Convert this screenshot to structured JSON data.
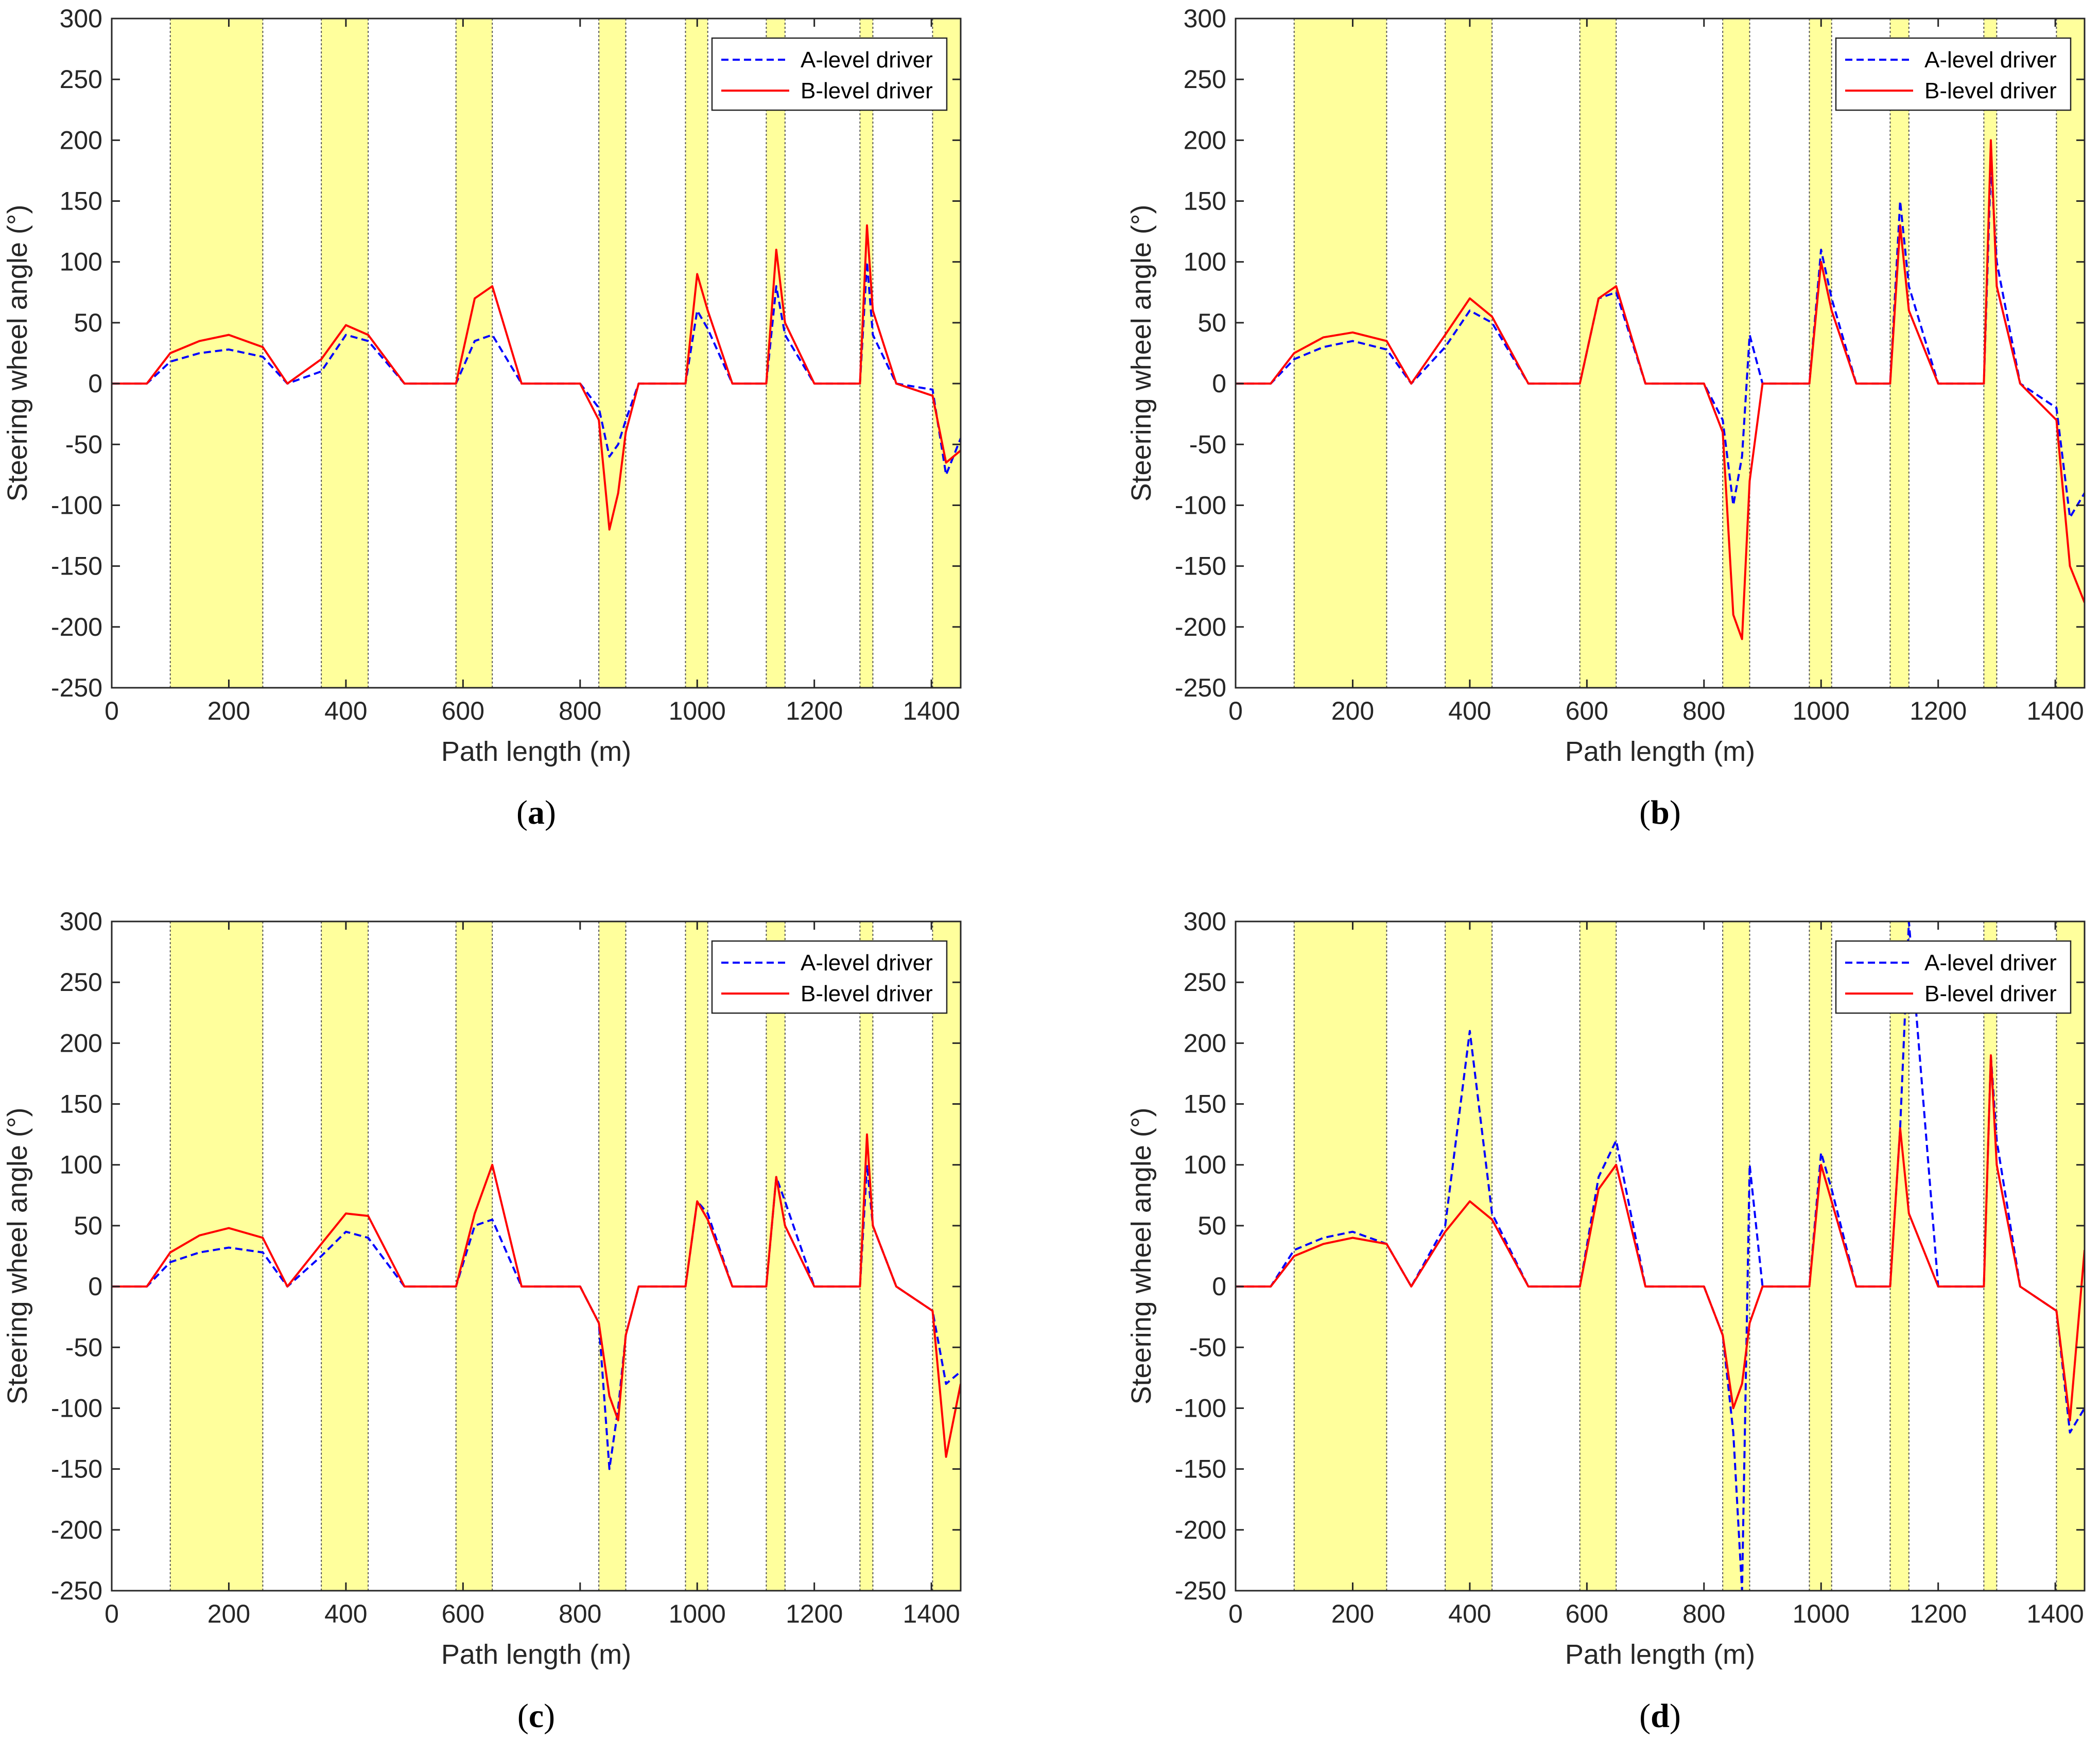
{
  "colors": {
    "band": "#ffff9c",
    "band_edge": "#555555",
    "a_level": "#0000ff",
    "b_level": "#ff0000",
    "axis": "#262626"
  },
  "chart_data": [
    {
      "type": "line",
      "caption_prefix": "(",
      "caption_letter": "a",
      "caption_suffix": ")",
      "xlabel": "Path length (m)",
      "ylabel": "Steering wheel angle (°)",
      "xlim": [
        0,
        1450
      ],
      "ylim": [
        -250,
        300
      ],
      "xticks": [
        0,
        200,
        400,
        600,
        800,
        1000,
        1200,
        1400
      ],
      "yticks": [
        -250,
        -200,
        -150,
        -100,
        -50,
        0,
        50,
        100,
        150,
        200,
        250,
        300
      ],
      "legend": {
        "position": "top-right",
        "entries": [
          "A-level driver",
          "B-level driver"
        ]
      },
      "shaded_intervals": [
        [
          100,
          258
        ],
        [
          358,
          438
        ],
        [
          588,
          650
        ],
        [
          832,
          878
        ],
        [
          980,
          1018
        ],
        [
          1118,
          1150
        ],
        [
          1278,
          1300
        ],
        [
          1402,
          1450
        ]
      ],
      "series": [
        {
          "name": "A-level driver",
          "style": "dashed",
          "color": "#0000ff",
          "x": [
            0,
            60,
            100,
            150,
            200,
            258,
            300,
            358,
            400,
            438,
            500,
            588,
            620,
            650,
            700,
            800,
            832,
            850,
            865,
            878,
            900,
            980,
            1000,
            1018,
            1060,
            1118,
            1135,
            1150,
            1200,
            1278,
            1290,
            1300,
            1340,
            1402,
            1425,
            1450
          ],
          "y": [
            0,
            0,
            18,
            25,
            28,
            22,
            0,
            10,
            40,
            35,
            0,
            0,
            35,
            40,
            0,
            0,
            -20,
            -60,
            -50,
            -30,
            0,
            0,
            60,
            45,
            0,
            0,
            80,
            40,
            0,
            0,
            100,
            40,
            0,
            -5,
            -75,
            -45
          ]
        },
        {
          "name": "B-level driver",
          "style": "solid",
          "color": "#ff0000",
          "x": [
            0,
            60,
            100,
            150,
            200,
            258,
            300,
            358,
            400,
            438,
            500,
            588,
            620,
            650,
            700,
            800,
            832,
            850,
            865,
            878,
            900,
            980,
            1000,
            1018,
            1060,
            1118,
            1135,
            1150,
            1200,
            1278,
            1290,
            1300,
            1340,
            1402,
            1425,
            1450
          ],
          "y": [
            0,
            0,
            25,
            35,
            40,
            30,
            0,
            20,
            48,
            40,
            0,
            0,
            70,
            80,
            0,
            0,
            -30,
            -120,
            -90,
            -40,
            0,
            0,
            90,
            60,
            0,
            0,
            110,
            50,
            0,
            0,
            130,
            60,
            0,
            -10,
            -65,
            -55
          ]
        }
      ]
    },
    {
      "type": "line",
      "caption_prefix": "(",
      "caption_letter": "b",
      "caption_suffix": ")",
      "xlabel": "Path length (m)",
      "ylabel": "Steering wheel angle (°)",
      "xlim": [
        0,
        1450
      ],
      "ylim": [
        -250,
        300
      ],
      "xticks": [
        0,
        200,
        400,
        600,
        800,
        1000,
        1200,
        1400
      ],
      "yticks": [
        -250,
        -200,
        -150,
        -100,
        -50,
        0,
        50,
        100,
        150,
        200,
        250,
        300
      ],
      "legend": {
        "position": "top-right",
        "entries": [
          "A-level driver",
          "B-level driver"
        ]
      },
      "shaded_intervals": [
        [
          100,
          258
        ],
        [
          358,
          438
        ],
        [
          588,
          650
        ],
        [
          832,
          878
        ],
        [
          980,
          1018
        ],
        [
          1118,
          1150
        ],
        [
          1278,
          1300
        ],
        [
          1402,
          1450
        ]
      ],
      "series": [
        {
          "name": "A-level driver",
          "style": "dashed",
          "color": "#0000ff",
          "x": [
            0,
            60,
            100,
            150,
            200,
            258,
            300,
            358,
            400,
            438,
            500,
            588,
            620,
            650,
            700,
            800,
            832,
            850,
            865,
            878,
            900,
            980,
            1000,
            1018,
            1060,
            1118,
            1135,
            1150,
            1200,
            1278,
            1290,
            1300,
            1340,
            1402,
            1425,
            1450
          ],
          "y": [
            0,
            0,
            20,
            30,
            35,
            28,
            0,
            30,
            60,
            50,
            0,
            0,
            70,
            75,
            0,
            0,
            -30,
            -100,
            -60,
            40,
            0,
            0,
            110,
            70,
            0,
            0,
            150,
            80,
            0,
            0,
            180,
            100,
            0,
            -20,
            -110,
            -90
          ]
        },
        {
          "name": "B-level driver",
          "style": "solid",
          "color": "#ff0000",
          "x": [
            0,
            60,
            100,
            150,
            200,
            258,
            300,
            358,
            400,
            438,
            500,
            588,
            620,
            650,
            700,
            800,
            832,
            850,
            865,
            878,
            900,
            980,
            1000,
            1018,
            1060,
            1118,
            1135,
            1150,
            1200,
            1278,
            1290,
            1300,
            1340,
            1402,
            1425,
            1450
          ],
          "y": [
            0,
            0,
            25,
            38,
            42,
            35,
            0,
            40,
            70,
            55,
            0,
            0,
            70,
            80,
            0,
            0,
            -40,
            -190,
            -210,
            -80,
            0,
            0,
            100,
            60,
            0,
            0,
            130,
            60,
            0,
            0,
            200,
            80,
            0,
            -30,
            -150,
            -180
          ]
        }
      ]
    },
    {
      "type": "line",
      "caption_prefix": "(",
      "caption_letter": "c",
      "caption_suffix": ")",
      "xlabel": "Path length (m)",
      "ylabel": "Steering wheel angle (°)",
      "xlim": [
        0,
        1450
      ],
      "ylim": [
        -250,
        300
      ],
      "xticks": [
        0,
        200,
        400,
        600,
        800,
        1000,
        1200,
        1400
      ],
      "yticks": [
        -250,
        -200,
        -150,
        -100,
        -50,
        0,
        50,
        100,
        150,
        200,
        250,
        300
      ],
      "legend": {
        "position": "top-right",
        "entries": [
          "A-level driver",
          "B-level driver"
        ]
      },
      "shaded_intervals": [
        [
          100,
          258
        ],
        [
          358,
          438
        ],
        [
          588,
          650
        ],
        [
          832,
          878
        ],
        [
          980,
          1018
        ],
        [
          1118,
          1150
        ],
        [
          1278,
          1300
        ],
        [
          1402,
          1450
        ]
      ],
      "series": [
        {
          "name": "A-level driver",
          "style": "dashed",
          "color": "#0000ff",
          "x": [
            0,
            60,
            100,
            150,
            200,
            258,
            300,
            358,
            400,
            438,
            500,
            588,
            620,
            650,
            700,
            800,
            832,
            850,
            865,
            878,
            900,
            980,
            1000,
            1018,
            1060,
            1118,
            1135,
            1150,
            1200,
            1278,
            1290,
            1300,
            1340,
            1402,
            1425,
            1450
          ],
          "y": [
            0,
            0,
            20,
            28,
            32,
            28,
            0,
            25,
            45,
            40,
            0,
            0,
            50,
            55,
            0,
            0,
            -30,
            -150,
            -100,
            -40,
            0,
            0,
            70,
            60,
            0,
            0,
            90,
            70,
            0,
            0,
            100,
            50,
            0,
            -20,
            -80,
            -70
          ]
        },
        {
          "name": "B-level driver",
          "style": "solid",
          "color": "#ff0000",
          "x": [
            0,
            60,
            100,
            150,
            200,
            258,
            300,
            358,
            400,
            438,
            500,
            588,
            620,
            650,
            700,
            800,
            832,
            850,
            865,
            878,
            900,
            980,
            1000,
            1018,
            1060,
            1118,
            1135,
            1150,
            1200,
            1278,
            1290,
            1300,
            1340,
            1402,
            1425,
            1450
          ],
          "y": [
            0,
            0,
            28,
            42,
            48,
            40,
            0,
            35,
            60,
            58,
            0,
            0,
            60,
            100,
            0,
            0,
            -30,
            -90,
            -110,
            -40,
            0,
            0,
            70,
            55,
            0,
            0,
            90,
            50,
            0,
            0,
            125,
            50,
            0,
            -20,
            -140,
            -80
          ]
        }
      ]
    },
    {
      "type": "line",
      "caption_prefix": "(",
      "caption_letter": "d",
      "caption_suffix": ")",
      "xlabel": "Path length (m)",
      "ylabel": "Steering wheel angle (°)",
      "xlim": [
        0,
        1450
      ],
      "ylim": [
        -250,
        300
      ],
      "xticks": [
        0,
        200,
        400,
        600,
        800,
        1000,
        1200,
        1400
      ],
      "yticks": [
        -250,
        -200,
        -150,
        -100,
        -50,
        0,
        50,
        100,
        150,
        200,
        250,
        300
      ],
      "legend": {
        "position": "top-right",
        "entries": [
          "A-level driver",
          "B-level driver"
        ]
      },
      "shaded_intervals": [
        [
          100,
          258
        ],
        [
          358,
          438
        ],
        [
          588,
          650
        ],
        [
          832,
          878
        ],
        [
          980,
          1018
        ],
        [
          1118,
          1150
        ],
        [
          1278,
          1300
        ],
        [
          1402,
          1450
        ]
      ],
      "series": [
        {
          "name": "A-level driver",
          "style": "dashed",
          "color": "#0000ff",
          "x": [
            0,
            60,
            100,
            150,
            200,
            258,
            300,
            358,
            400,
            438,
            500,
            588,
            620,
            650,
            700,
            800,
            832,
            850,
            865,
            878,
            900,
            980,
            1000,
            1018,
            1060,
            1118,
            1135,
            1150,
            1200,
            1278,
            1290,
            1300,
            1340,
            1402,
            1425,
            1450
          ],
          "y": [
            0,
            0,
            30,
            40,
            45,
            35,
            0,
            50,
            210,
            60,
            0,
            0,
            90,
            120,
            0,
            0,
            -40,
            -120,
            -250,
            100,
            0,
            0,
            110,
            80,
            0,
            0,
            130,
            300,
            0,
            0,
            190,
            120,
            0,
            -20,
            -120,
            -100
          ]
        },
        {
          "name": "B-level driver",
          "style": "solid",
          "color": "#ff0000",
          "x": [
            0,
            60,
            100,
            150,
            200,
            258,
            300,
            358,
            400,
            438,
            500,
            588,
            620,
            650,
            700,
            800,
            832,
            850,
            865,
            878,
            900,
            980,
            1000,
            1018,
            1060,
            1118,
            1135,
            1150,
            1200,
            1278,
            1290,
            1300,
            1340,
            1402,
            1425,
            1450
          ],
          "y": [
            0,
            0,
            25,
            35,
            40,
            35,
            0,
            45,
            70,
            55,
            0,
            0,
            80,
            100,
            0,
            0,
            -40,
            -100,
            -80,
            -30,
            0,
            0,
            100,
            70,
            0,
            0,
            130,
            60,
            0,
            0,
            190,
            100,
            0,
            -20,
            -110,
            30
          ]
        }
      ]
    }
  ]
}
